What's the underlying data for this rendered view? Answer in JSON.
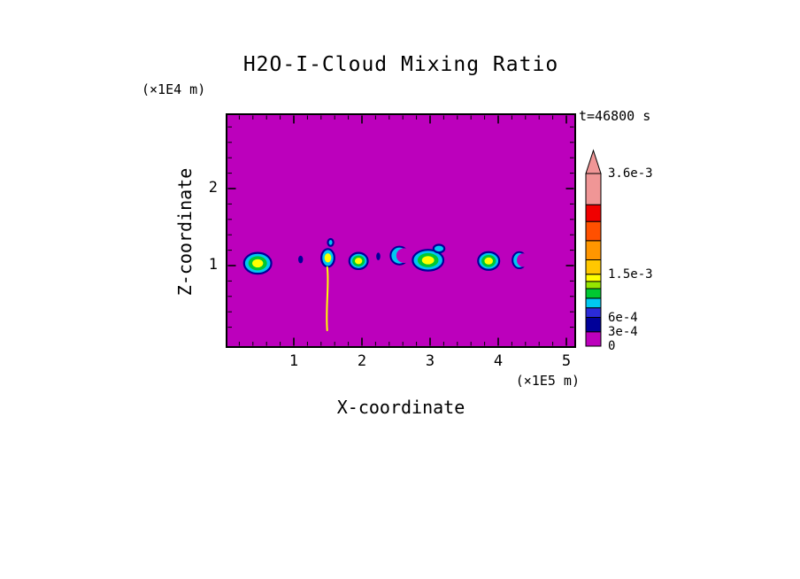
{
  "chart_data": {
    "type": "heatmap",
    "title": "H2O-I-Cloud Mixing Ratio",
    "time_label": "t=46800 s",
    "xlabel": "X-coordinate",
    "x_unit": "(×1E5 m)",
    "ylabel": "Z-coordinate",
    "y_unit": "(×1E4 m)",
    "background_value": 0,
    "background_color": "#BC00BC",
    "palette": {
      "magenta": "#BC00BC",
      "navy": "#000099",
      "blue": "#2A2AD8",
      "cyan": "#00C8F0",
      "green": "#00C832",
      "yellowgreen": "#96E600",
      "yellow": "#FFFF00",
      "amber": "#FFC800",
      "orange": "#FF9600",
      "orangered": "#FF5000",
      "red": "#F00000",
      "pink": "#F09696"
    },
    "axes": {
      "x": {
        "min": 0,
        "max": 5.14,
        "minor_step": 0.2,
        "major_ticks": [
          {
            "v": 1,
            "label": "1"
          },
          {
            "v": 2,
            "label": "2"
          },
          {
            "v": 3,
            "label": "3"
          },
          {
            "v": 4,
            "label": "4"
          },
          {
            "v": 5,
            "label": "5"
          }
        ]
      },
      "z": {
        "min": 0,
        "max": 2.98,
        "minor_step": 0.2,
        "major_ticks": [
          {
            "v": 1,
            "label": "1"
          },
          {
            "v": 2,
            "label": "2"
          }
        ]
      }
    },
    "colorbar": {
      "max": 0.0036,
      "overflow_color": "pink",
      "segments": [
        {
          "from": 0,
          "to": 0.0003,
          "color": "magenta"
        },
        {
          "from": 0.0003,
          "to": 0.0006,
          "color": "navy"
        },
        {
          "from": 0.0006,
          "to": 0.0008,
          "color": "blue"
        },
        {
          "from": 0.0008,
          "to": 0.001,
          "color": "cyan"
        },
        {
          "from": 0.001,
          "to": 0.0012,
          "color": "green"
        },
        {
          "from": 0.0012,
          "to": 0.00135,
          "color": "yellowgreen"
        },
        {
          "from": 0.00135,
          "to": 0.0015,
          "color": "yellow"
        },
        {
          "from": 0.0015,
          "to": 0.0018,
          "color": "amber"
        },
        {
          "from": 0.0018,
          "to": 0.0022,
          "color": "orange"
        },
        {
          "from": 0.0022,
          "to": 0.0026,
          "color": "orangered"
        },
        {
          "from": 0.0026,
          "to": 0.00295,
          "color": "red"
        },
        {
          "from": 0.00295,
          "to": 0.0036,
          "color": "pink"
        }
      ],
      "labels": [
        {
          "v": 0.0036,
          "text": "3.6e-3"
        },
        {
          "v": 0.0015,
          "text": "1.5e-3"
        },
        {
          "v": 0.0006,
          "text": "6e-4"
        },
        {
          "v": 0.0003,
          "text": "3e-4"
        },
        {
          "v": 0,
          "text": "0"
        }
      ]
    },
    "features": [
      {
        "type": "blob",
        "x": 0.47,
        "z": 1.03,
        "rx": 0.2,
        "rz": 0.135,
        "layers": [
          "cyan",
          "green",
          "yellow"
        ]
      },
      {
        "type": "dot",
        "x": 1.1,
        "z": 1.08,
        "rx": 0.035,
        "rz": 0.05
      },
      {
        "type": "blob",
        "x": 1.5,
        "z": 1.1,
        "rx": 0.095,
        "rz": 0.115,
        "layers": [
          "cyan",
          "yellow"
        ]
      },
      {
        "type": "blob",
        "x": 1.54,
        "z": 1.3,
        "rx": 0.04,
        "rz": 0.045,
        "layers": [
          "cyan"
        ]
      },
      {
        "type": "streak",
        "x": 1.49,
        "z_top": 0.98,
        "z_bottom": 0.16,
        "color": "yellow"
      },
      {
        "type": "blob",
        "x": 1.95,
        "z": 1.06,
        "rx": 0.135,
        "rz": 0.105,
        "layers": [
          "cyan",
          "green",
          "yellow"
        ]
      },
      {
        "type": "dot",
        "x": 2.24,
        "z": 1.12,
        "rx": 0.03,
        "rz": 0.05
      },
      {
        "type": "crescent",
        "x": 2.55,
        "z": 1.13,
        "rx": 0.13,
        "rz": 0.115
      },
      {
        "type": "blob",
        "x": 2.97,
        "z": 1.07,
        "rx": 0.225,
        "rz": 0.135,
        "layers": [
          "cyan",
          "green",
          "yellow"
        ]
      },
      {
        "type": "blob",
        "x": 3.13,
        "z": 1.22,
        "rx": 0.08,
        "rz": 0.05,
        "layers": [
          "cyan"
        ]
      },
      {
        "type": "blob",
        "x": 3.86,
        "z": 1.06,
        "rx": 0.155,
        "rz": 0.115,
        "layers": [
          "cyan",
          "green",
          "yellow"
        ]
      },
      {
        "type": "crescent",
        "x": 4.31,
        "z": 1.07,
        "rx": 0.1,
        "rz": 0.105
      }
    ]
  }
}
